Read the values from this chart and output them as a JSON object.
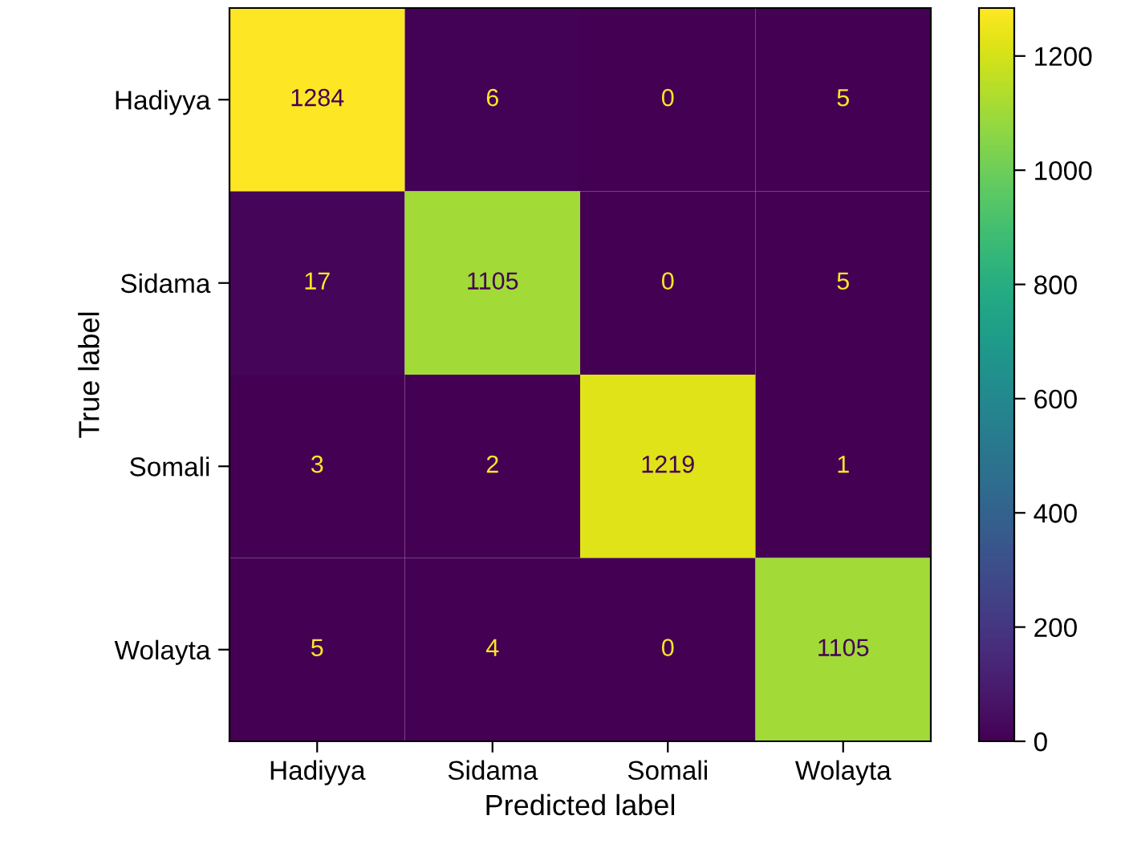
{
  "chart_data": {
    "type": "heatmap",
    "xlabel": "Predicted label",
    "ylabel": "True label",
    "categories": [
      "Hadiyya",
      "Sidama",
      "Somali",
      "Wolayta"
    ],
    "y_categories": [
      "Hadiyya",
      "Sidama",
      "Somali",
      "Wolayta"
    ],
    "cells": [
      [
        1284,
        6,
        0,
        5
      ],
      [
        17,
        1105,
        0,
        5
      ],
      [
        3,
        2,
        1219,
        1
      ],
      [
        5,
        4,
        0,
        1105
      ]
    ],
    "clim": [
      0,
      1284
    ],
    "cticks": [
      0,
      200,
      400,
      600,
      800,
      1000,
      1200
    ],
    "data_labels": true,
    "grid": false
  }
}
